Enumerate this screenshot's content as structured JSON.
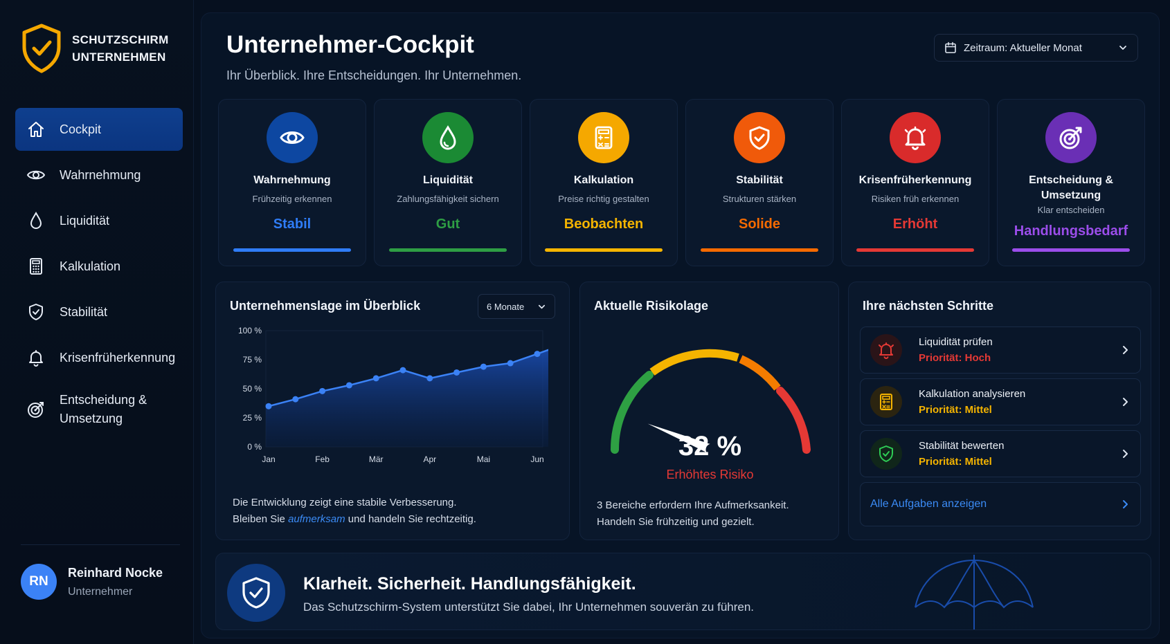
{
  "brand": {
    "line1": "SCHUTZSCHIRM",
    "line2": "UNTERNEHMEN"
  },
  "nav": [
    {
      "label": "Cockpit",
      "icon": "home-icon",
      "active": true
    },
    {
      "label": "Wahrnehmung",
      "icon": "eye-icon"
    },
    {
      "label": "Liquidität",
      "icon": "droplet-icon"
    },
    {
      "label": "Kalkulation",
      "icon": "calculator-icon"
    },
    {
      "label": "Stabilität",
      "icon": "shield-check-icon"
    },
    {
      "label": "Krisenfrüherkennung",
      "icon": "bell-icon"
    },
    {
      "label": "Entscheidung &",
      "label2": "Umsetzung",
      "icon": "target-icon"
    }
  ],
  "user": {
    "initials": "RN",
    "name": "Reinhard Nocke",
    "role": "Unternehmer"
  },
  "header": {
    "title": "Unternehmer-Cockpit",
    "subtitle": "Ihr Überblick. Ihre Entscheidungen. Ihr Unternehmen.",
    "period": "Zeitraum: Aktueller Monat"
  },
  "cards": [
    {
      "name": "Wahrnehmung",
      "desc": "Frühzeitig erkennen",
      "status": "Stabil",
      "color": "#2f7cf6",
      "bg": "#0d47a1",
      "icon": "eye-icon"
    },
    {
      "name": "Liquidität",
      "desc": "Zahlungsfähigkeit sichern",
      "status": "Gut",
      "color": "#2e9e44",
      "bg": "#1b8a34",
      "icon": "droplet-icon"
    },
    {
      "name": "Kalkulation",
      "desc": "Preise richtig gestalten",
      "status": "Beobachten",
      "color": "#f5b400",
      "bg": "#f5a800",
      "icon": "calculator-icon"
    },
    {
      "name": "Stabilität",
      "desc": "Strukturen stärken",
      "status": "Solide",
      "color": "#f56a00",
      "bg": "#f05a0a",
      "icon": "shield-check-icon"
    },
    {
      "name": "Krisenfrüherkennung",
      "desc": "Risiken früh erkennen",
      "status": "Erhöht",
      "color": "#e53935",
      "bg": "#d92b2b",
      "icon": "bell-icon"
    },
    {
      "name": "Entscheidung &",
      "name2": "Umsetzung",
      "desc": "Klar entscheiden",
      "status": "Handlungsbedarf",
      "color": "#9b4dea",
      "bg": "#6a2fb5",
      "icon": "target-icon"
    }
  ],
  "overview": {
    "title": "Unternehmenslage im Überblick",
    "range": "6 Monate",
    "note_line1": "Die Entwicklung zeigt eine stabile Verbesserung.",
    "note_pre": "Bleiben Sie ",
    "note_em": "aufmerksam",
    "note_post": " und handeln Sie rechtzeitig."
  },
  "chart_data": {
    "type": "area",
    "categories": [
      "Jan",
      "Feb",
      "Mär",
      "Apr",
      "Mai",
      "Jun"
    ],
    "y_ticks": [
      "100 %",
      "75 %",
      "50 %",
      "25 %",
      "0 %"
    ],
    "ylim": [
      0,
      100
    ],
    "points": [
      {
        "x": 0,
        "y": 35
      },
      {
        "x": 0.5,
        "y": 41
      },
      {
        "x": 1,
        "y": 48
      },
      {
        "x": 1.5,
        "y": 53
      },
      {
        "x": 2,
        "y": 59
      },
      {
        "x": 2.5,
        "y": 66
      },
      {
        "x": 3,
        "y": 59
      },
      {
        "x": 3.5,
        "y": 64
      },
      {
        "x": 4,
        "y": 69
      },
      {
        "x": 4.5,
        "y": 72
      },
      {
        "x": 5,
        "y": 80
      },
      {
        "x": 5.3,
        "y": 85
      },
      {
        "x": 5.8,
        "y": 92
      }
    ],
    "color": "#3b82f6"
  },
  "risk": {
    "title": "Aktuelle Risikolage",
    "value": "32 %",
    "percent": 32,
    "label": "Erhöhtes Risiko",
    "note_line1": "3 Bereiche erfordern Ihre Aufmerksankeit.",
    "note_line2": "Handeln Sie frühzeitig und gezielt."
  },
  "steps": {
    "title": "Ihre nächsten Schritte",
    "items": [
      {
        "title": "Liquidität prüfen",
        "priority": "Priorität: Hoch",
        "color": "#e53935",
        "icon": "bell-icon"
      },
      {
        "title": "Kalkulation analysieren",
        "priority": "Priorität: Mittel",
        "color": "#f5b400",
        "icon": "calculator-icon"
      },
      {
        "title": "Stabilität bewerten",
        "priority": "Priorität: Mittel",
        "color": "#f5b400",
        "icon": "shield-check-icon"
      }
    ],
    "all_label": "Alle Aufgaben anzeigen"
  },
  "banner": {
    "title": "Klarheit. Sicherheit. Handlungsfähigkeit.",
    "subtitle": "Das Schutzschirm-System unterstützt Sie dabei, Ihr Unternehmen souverän zu führen."
  }
}
